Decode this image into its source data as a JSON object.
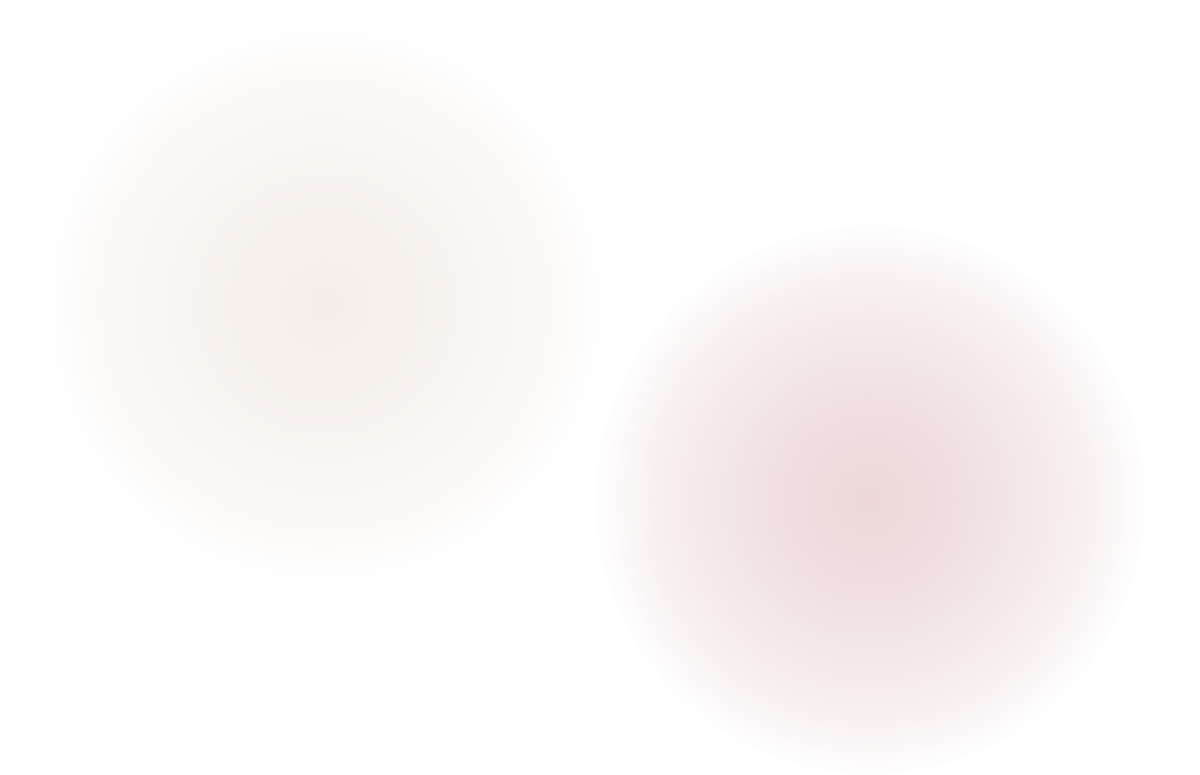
{
  "background": {
    "color": "#ffffff",
    "blobs": [
      {
        "color": "#f4eee9"
      },
      {
        "color": "#ecd8d9"
      }
    ]
  }
}
